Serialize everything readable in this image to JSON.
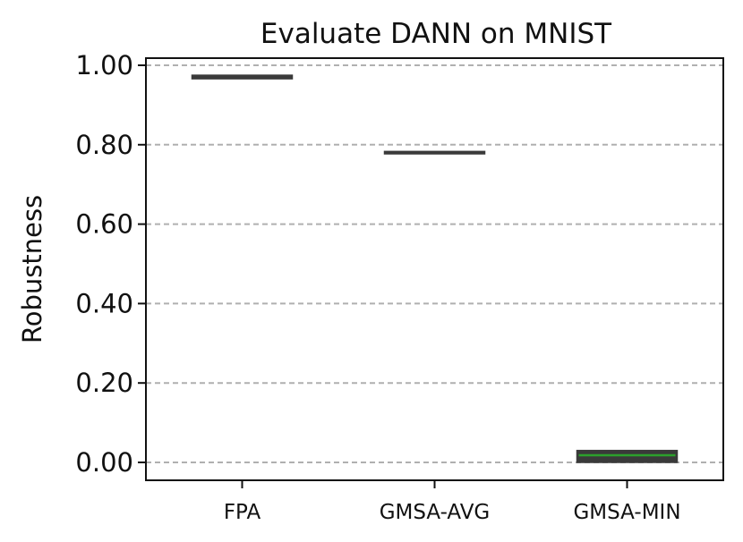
{
  "chart_data": {
    "type": "box",
    "title": "Evaluate DANN on MNIST",
    "xlabel": "",
    "ylabel": "Robustness",
    "ylim": [
      -0.04,
      1.04
    ],
    "grid": "y-dashed",
    "yticks": [
      "0.00",
      "0.20",
      "0.40",
      "0.60",
      "0.80",
      "1.00"
    ],
    "ytick_values": [
      0.0,
      0.2,
      0.4,
      0.6,
      0.8,
      1.0
    ],
    "categories": [
      "FPA",
      "GMSA-AVG",
      "GMSA-MIN"
    ],
    "boxes": [
      {
        "category": "FPA",
        "q1": 0.966,
        "median": 0.968,
        "q3": 0.975,
        "color": "#3a3a3a",
        "median_color": "#3a3a3a"
      },
      {
        "category": "GMSA-AVG",
        "q1": 0.777,
        "median": 0.78,
        "q3": 0.783,
        "color": "#3a3a3a",
        "median_color": "#3a3a3a"
      },
      {
        "category": "GMSA-MIN",
        "q1": 0.0,
        "median": 0.018,
        "q3": 0.03,
        "color": "#3a3a3a",
        "median_color": "#2ca02c"
      }
    ]
  }
}
